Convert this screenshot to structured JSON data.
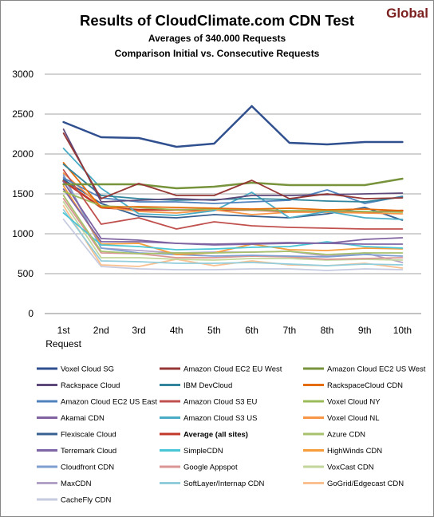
{
  "chart_data": {
    "type": "line",
    "title": "Results of CloudClimate.com CDN Test",
    "badge": "Global",
    "subtitle_1": "Averages of 340.000  Requests",
    "subtitle_2": "Comparison Initial vs. Consecutive Requests",
    "xlabel": "Request",
    "ylabel": "",
    "ylim": [
      0,
      3000
    ],
    "yticks": [
      0,
      500,
      1000,
      1500,
      2000,
      2500,
      3000
    ],
    "categories": [
      "1st",
      "2nd",
      "3rd",
      "4th",
      "5th",
      "6th",
      "7th",
      "8th",
      "9th",
      "10th"
    ],
    "grid": true,
    "legend_position": "bottom",
    "series": [
      {
        "name": "Voxel Cloud SG",
        "color": "#2f4f8f",
        "width": 2.5,
        "bold": false,
        "values": [
          2400,
          2210,
          2200,
          2090,
          2130,
          2600,
          2140,
          2120,
          2150,
          2150
        ]
      },
      {
        "name": "Amazon Cloud EC2 EU West",
        "color": "#953735",
        "width": 1.8,
        "bold": false,
        "values": [
          2260,
          1440,
          1630,
          1480,
          1480,
          1670,
          1440,
          1500,
          1440,
          1450
        ]
      },
      {
        "name": "Amazon Cloud EC2 US West",
        "color": "#77933c",
        "width": 2.5,
        "bold": false,
        "values": [
          1620,
          1620,
          1620,
          1570,
          1590,
          1640,
          1610,
          1610,
          1610,
          1690
        ]
      },
      {
        "name": "Rackspace Cloud",
        "color": "#5f497a",
        "width": 1.8,
        "bold": false,
        "values": [
          2310,
          1400,
          1420,
          1440,
          1420,
          1480,
          1480,
          1490,
          1500,
          1510
        ]
      },
      {
        "name": "IBM DevCloud",
        "color": "#31859c",
        "width": 1.8,
        "bold": false,
        "values": [
          1870,
          1480,
          1440,
          1420,
          1430,
          1440,
          1430,
          1410,
          1400,
          1460
        ]
      },
      {
        "name": "RackspaceCloud CDN",
        "color": "#e46c0a",
        "width": 1.8,
        "bold": false,
        "values": [
          1890,
          1330,
          1340,
          1330,
          1320,
          1310,
          1320,
          1300,
          1310,
          1290
        ]
      },
      {
        "name": "Amazon Cloud EC2 US East",
        "color": "#4f81bd",
        "width": 1.8,
        "bold": false,
        "values": [
          1700,
          1450,
          1400,
          1400,
          1380,
          1400,
          1420,
          1550,
          1380,
          1470
        ]
      },
      {
        "name": "Amazon Cloud S3 EU",
        "color": "#c0504d",
        "width": 1.8,
        "bold": false,
        "values": [
          1800,
          1120,
          1200,
          1060,
          1150,
          1100,
          1080,
          1070,
          1060,
          1060
        ]
      },
      {
        "name": "Voxel Cloud NY",
        "color": "#9bbb59",
        "width": 1.8,
        "bold": false,
        "values": [
          1530,
          1350,
          1330,
          1300,
          1310,
          1300,
          1290,
          1290,
          1280,
          1270
        ]
      },
      {
        "name": "Akamai CDN",
        "color": "#8064a2",
        "width": 1.8,
        "bold": false,
        "values": [
          1650,
          940,
          920,
          880,
          870,
          880,
          890,
          880,
          930,
          950
        ]
      },
      {
        "name": "Amazon Cloud S3 US",
        "color": "#4bacc6",
        "width": 1.8,
        "bold": false,
        "values": [
          2070,
          1570,
          1250,
          1230,
          1290,
          1520,
          1200,
          1280,
          1200,
          1180
        ]
      },
      {
        "name": "Voxel Cloud NL",
        "color": "#f79646",
        "width": 1.8,
        "bold": false,
        "values": [
          1760,
          1340,
          1280,
          1260,
          1300,
          1240,
          1270,
          1270,
          1260,
          1250
        ]
      },
      {
        "name": "Flexiscale Cloud",
        "color": "#376092",
        "width": 1.8,
        "bold": false,
        "values": [
          1680,
          1380,
          1220,
          1200,
          1240,
          1220,
          1200,
          1250,
          1330,
          1170
        ]
      },
      {
        "name": "Average (all sites)",
        "color": "#c0392b",
        "width": 2.6,
        "bold": true,
        "values": [
          1660,
          1330,
          1300,
          1300,
          1300,
          1300,
          1280,
          1280,
          1270,
          1290
        ]
      },
      {
        "name": "Azure CDN",
        "color": "#a7c16d",
        "width": 1.8,
        "bold": false,
        "values": [
          1480,
          780,
          750,
          760,
          760,
          770,
          780,
          740,
          760,
          760
        ]
      },
      {
        "name": "Terremark Cloud",
        "color": "#7e65a5",
        "width": 1.8,
        "bold": false,
        "values": [
          1560,
          900,
          900,
          880,
          860,
          870,
          880,
          880,
          870,
          870
        ]
      },
      {
        "name": "SimpleCDN",
        "color": "#4bc6d6",
        "width": 1.8,
        "bold": false,
        "values": [
          1260,
          860,
          840,
          800,
          810,
          830,
          840,
          900,
          840,
          820
        ]
      },
      {
        "name": "HighWinds CDN",
        "color": "#f79c3a",
        "width": 1.8,
        "bold": false,
        "values": [
          1600,
          870,
          880,
          740,
          760,
          870,
          800,
          790,
          820,
          810
        ]
      },
      {
        "name": "Cloudfront CDN",
        "color": "#7f9fd0",
        "width": 1.8,
        "bold": false,
        "values": [
          1740,
          820,
          760,
          740,
          720,
          730,
          720,
          710,
          740,
          720
        ]
      },
      {
        "name": "Google Appspot",
        "color": "#d99694",
        "width": 1.8,
        "bold": false,
        "values": [
          1440,
          760,
          750,
          700,
          700,
          720,
          710,
          680,
          690,
          700
        ]
      },
      {
        "name": "VoxCast CDN",
        "color": "#c3d69b",
        "width": 1.8,
        "bold": false,
        "values": [
          1400,
          700,
          700,
          680,
          670,
          690,
          690,
          670,
          680,
          670
        ]
      },
      {
        "name": "MaxCDN",
        "color": "#b2a2c7",
        "width": 1.8,
        "bold": false,
        "values": [
          1720,
          820,
          790,
          760,
          770,
          770,
          780,
          720,
          760,
          640
        ]
      },
      {
        "name": "SoftLayer/Internap CDN",
        "color": "#92cddc",
        "width": 1.8,
        "bold": false,
        "values": [
          1300,
          660,
          650,
          630,
          630,
          640,
          620,
          600,
          620,
          610
        ]
      },
      {
        "name": "GoGrid/Edgecast CDN",
        "color": "#fac090",
        "width": 1.8,
        "bold": false,
        "values": [
          1350,
          610,
          590,
          680,
          600,
          660,
          610,
          600,
          630,
          570
        ]
      },
      {
        "name": "CacheFly CDN",
        "color": "#c6cbe0",
        "width": 1.8,
        "bold": false,
        "values": [
          1180,
          590,
          560,
          550,
          550,
          560,
          560,
          540,
          560,
          550
        ]
      }
    ]
  }
}
